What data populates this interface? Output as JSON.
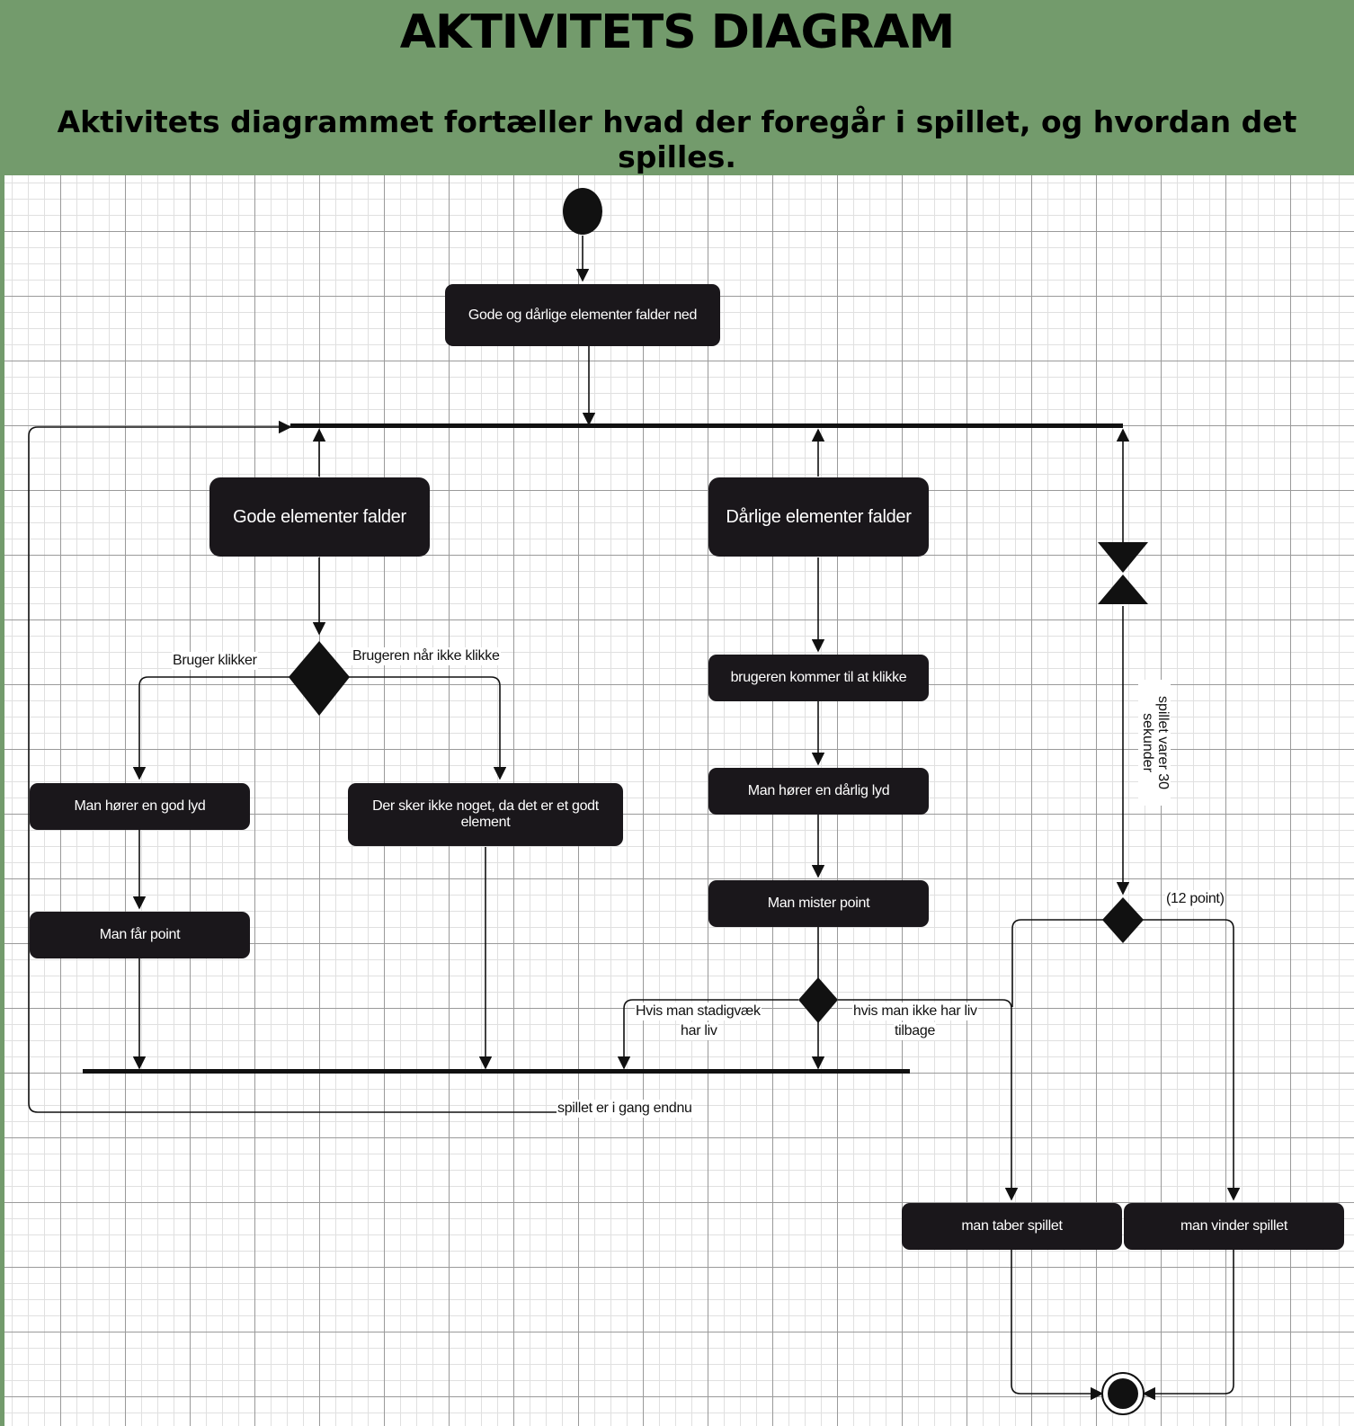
{
  "header": {
    "title": "AKTIVITETS DIAGRAM",
    "subtitle": "Aktivitets diagrammet fortæller hvad der foregår i spillet, og hvordan det spilles."
  },
  "nodes": {
    "start_action": "Gode og dårlige elementer falder ned",
    "good_falls": "Gode elementer falder",
    "bad_falls": "Dårlige elementer falder",
    "good_sound": "Man hører en god lyd",
    "get_point": "Man får point",
    "nothing_happens": "Der sker ikke noget, da det er et godt element",
    "user_clicks_bad": "brugeren kommer til at klikke",
    "bad_sound": "Man hører en dårlig lyd",
    "lose_point": "Man mister point",
    "lose_game": "man taber spillet",
    "win_game": "man vinder spillet"
  },
  "labels": {
    "user_clicks": "Bruger klikker",
    "user_not_click": "Brugeren når ikke klikke",
    "still_lives_1": "Hvis man stadigvæk",
    "still_lives_2": "har liv",
    "no_lives_1": "hvis man ikke har liv",
    "no_lives_2": "tilbage",
    "game_ongoing": "spillet er i gang endnu",
    "timer_1": "spillet varer 30",
    "timer_2": "sekunder",
    "twelve_points": "(12 point)"
  },
  "colors": {
    "header_bg": "#739b6c",
    "node_bg": "#1a171b",
    "line": "#111111"
  }
}
